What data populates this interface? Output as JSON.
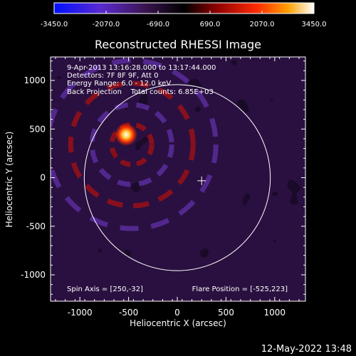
{
  "chart_data": {
    "type": "heatmap",
    "title": "Reconstructed RHESSI Image",
    "xlabel": "Heliocentric X (arcsec)",
    "ylabel": "Heliocentric Y (arcsec)",
    "xlim": [
      -1300,
      1300
    ],
    "ylim": [
      -1300,
      1300
    ],
    "x_ticks": [
      -1000,
      -500,
      0,
      500,
      1000
    ],
    "y_ticks": [
      -1000,
      -500,
      0,
      500,
      1000
    ],
    "colorbar": {
      "min": -3450.0,
      "max": 3450.0,
      "tick_values": [
        -3450,
        -2070,
        -690,
        690,
        2070,
        3450
      ],
      "tick_labels": [
        "-3450.0",
        "-2070.0",
        "-690.0",
        "690.0",
        "2070.0",
        "3450.0"
      ],
      "colors": [
        "#0010ff",
        "#5a2ad0",
        "#3a1450",
        "#000000",
        "#8a0000",
        "#ff2a00",
        "#ffa000",
        "#ffffff"
      ]
    },
    "annotations": [
      "9-Apr-2013 13:16:28.000 to 13:17:44.000",
      "Detectors: 7F 8F 9F, Att 0",
      "Energy Range: 6.0 - 12.0 keV",
      "Back Projection    Total counts: 6.85E+03"
    ],
    "spin_axis": "Spin Axis = [250,-32]",
    "flare_position": "Flare Position = [-525,223]",
    "solar_disk_radius": 955,
    "spin_axis_marker": [
      250,
      -32
    ],
    "flare_source": [
      -525,
      223
    ],
    "timestamp": "12-May-2022 13:48"
  },
  "colors": {
    "background": "#000000",
    "foreground": "#ffffff"
  }
}
